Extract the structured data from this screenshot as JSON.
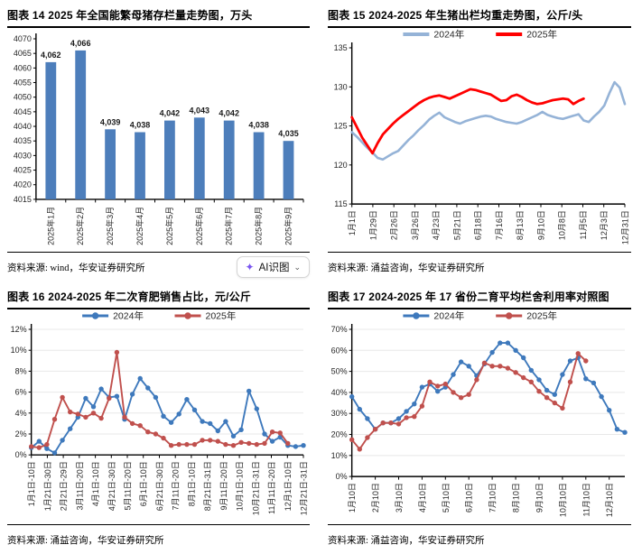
{
  "panels": [
    {
      "source": "资料来源: wind，华安证券研究所",
      "has_ai_button": true
    },
    {
      "source": "资料来源: 涌益咨询，华安证券研究所",
      "has_ai_button": false
    },
    {
      "source": "资料来源: 涌益咨询，华安证券研究所",
      "has_ai_button": false
    },
    {
      "source": "资料来源: 涌益咨询，华安证券研究所",
      "has_ai_button": false
    }
  ],
  "ai_button": {
    "label": "AI识图",
    "icon": "sparkle-scan-icon",
    "chevron": "⌄",
    "accent": "#7b57f0"
  },
  "chart_data": [
    {
      "type": "bar",
      "title": "图表 14 2025 年全国能繁母猪存栏量走势图，万头",
      "categories": [
        "2025年1月",
        "2025年2月",
        "2025年3月",
        "2025年4月",
        "2025年5月",
        "2025年6月",
        "2025年7月",
        "2025年8月",
        "2025年9月"
      ],
      "values": [
        4062,
        4066,
        4039,
        4038,
        4042,
        4043,
        4042,
        4038,
        4035
      ],
      "value_labels": [
        "4,062",
        "4,066",
        "4,039",
        "4,038",
        "4,042",
        "4,043",
        "4,042",
        "4,038",
        "4,035"
      ],
      "bar_color": "#4D7EBB",
      "ylim": [
        4015,
        4070
      ],
      "ytick_step": 5,
      "grid": false,
      "percent": false,
      "xlabel": "",
      "ylabel": "万头"
    },
    {
      "type": "line",
      "title": "图表 15 2024-2025 年生猪出栏均重走势图，公斤/头",
      "xlabels": [
        "1月1日",
        "1月29日",
        "2月26日",
        "3月26日",
        "4月23日",
        "5月21日",
        "6月18日",
        "7月16日",
        "8月13日",
        "9月10日",
        "10月8日",
        "11月5日",
        "12月3日",
        "12月31日"
      ],
      "x_count": 54,
      "ylim": [
        115,
        135
      ],
      "ytick_step": 5,
      "grid": false,
      "percent": false,
      "legend_position": "top",
      "series": [
        {
          "name": "2024年",
          "color": "#95B3D7",
          "width": 2.6,
          "markers": false,
          "values": [
            124.2,
            123.6,
            122.9,
            122.2,
            121.6,
            120.9,
            120.7,
            121.1,
            121.5,
            121.8,
            122.5,
            123.2,
            123.8,
            124.5,
            125.1,
            125.8,
            126.3,
            126.7,
            126.1,
            125.8,
            125.5,
            125.3,
            125.6,
            125.8,
            126.0,
            126.2,
            126.3,
            126.2,
            125.9,
            125.7,
            125.5,
            125.4,
            125.3,
            125.5,
            125.8,
            126.1,
            126.4,
            126.8,
            126.4,
            126.2,
            126.0,
            125.9,
            126.1,
            126.3,
            126.5,
            125.7,
            125.5,
            126.2,
            126.8,
            127.6,
            129.2,
            130.6,
            129.9,
            127.8
          ]
        },
        {
          "name": "2025年",
          "color": "#FF0000",
          "width": 2.8,
          "markers": false,
          "values": [
            126.1,
            124.8,
            123.5,
            122.5,
            121.5,
            122.8,
            123.9,
            124.6,
            125.3,
            125.9,
            126.4,
            126.9,
            127.4,
            127.9,
            128.3,
            128.6,
            128.8,
            128.9,
            128.7,
            128.5,
            128.8,
            129.1,
            129.4,
            129.7,
            129.6,
            129.4,
            129.2,
            129.0,
            128.6,
            128.2,
            128.3,
            128.8,
            129.0,
            128.7,
            128.3,
            128.0,
            127.8,
            127.9,
            128.1,
            128.3,
            128.4,
            128.5,
            128.4,
            127.8,
            128.2,
            128.5
          ]
        }
      ]
    },
    {
      "type": "line",
      "title": "图表 16 2024-2025 年二次育肥销售占比，元/公斤",
      "xlabels": [
        "1月1日-10日",
        "1月21日-30日",
        "2月21日-29日",
        "3月11日-20日",
        "4月1日-10日",
        "4月21日-30日",
        "5月11日-20日",
        "6月1日-10日",
        "6月21日-30日",
        "7月11日-20日",
        "8月1日-10日",
        "8月21日-31日",
        "9月11日-20日",
        "10月1日-10日",
        "10月21日-31日",
        "11月11日-20日",
        "12月1日-10日",
        "12月21日-31日"
      ],
      "x_count": 36,
      "ylim": [
        0,
        12
      ],
      "ytick_step": 2,
      "grid": true,
      "percent": true,
      "legend_position": "top",
      "series": [
        {
          "name": "2024年",
          "color": "#3E79BC",
          "width": 1.9,
          "markers": true,
          "values": [
            0.7,
            1.3,
            0.6,
            0.2,
            1.4,
            2.5,
            3.6,
            5.4,
            4.6,
            6.3,
            5.5,
            5.6,
            3.4,
            5.8,
            7.3,
            6.4,
            5.5,
            3.7,
            3.1,
            3.9,
            5.3,
            4.3,
            3.2,
            3.0,
            2.3,
            3.2,
            1.8,
            2.4,
            6.1,
            4.4,
            2.0,
            1.3,
            1.7,
            0.9,
            0.8,
            0.9
          ]
        },
        {
          "name": "2025年",
          "color": "#C0504D",
          "width": 1.9,
          "markers": true,
          "values": [
            0.8,
            0.7,
            1.0,
            3.4,
            5.5,
            4.1,
            3.9,
            3.6,
            4.0,
            3.5,
            5.4,
            9.8,
            3.6,
            3.0,
            2.8,
            2.2,
            2.0,
            1.6,
            0.9,
            1.0,
            1.0,
            1.0,
            1.4,
            1.4,
            1.3,
            1.0,
            0.9,
            1.2,
            1.1,
            1.0,
            1.1,
            2.2,
            2.1,
            1.1
          ]
        }
      ]
    },
    {
      "type": "line",
      "title": "图表 17 2024-2025 年 17 省份二育平均栏舍利用率对照图",
      "xlabels": [
        "1月10日",
        "2月10日",
        "3月10日",
        "4月10日",
        "5月10日",
        "6月10日",
        "7月10日",
        "8月10日",
        "9月10日",
        "10月10日",
        "11月10日",
        "12月10日"
      ],
      "x_count": 36,
      "label_step": 3,
      "ylim": [
        0,
        70
      ],
      "ytick_step": 10,
      "grid": true,
      "percent": true,
      "legend_position": "top",
      "series": [
        {
          "name": "2024年",
          "color": "#3E79BC",
          "width": 1.9,
          "markers": true,
          "values": [
            38,
            32,
            27.5,
            22.5,
            25.5,
            25.5,
            27.5,
            31,
            34.5,
            42.5,
            44,
            40.5,
            42.5,
            48.5,
            54.5,
            52.5,
            48,
            53.5,
            59,
            63.5,
            63.5,
            60,
            56.5,
            50.5,
            46,
            41,
            39,
            48.5,
            55,
            56.5,
            46.5,
            44.5,
            38,
            31.5,
            22.5,
            21
          ]
        },
        {
          "name": "2025年",
          "color": "#C0504D",
          "width": 1.9,
          "markers": true,
          "values": [
            17.5,
            13,
            18.5,
            22.5,
            25.5,
            25.5,
            25,
            28,
            28.5,
            33.5,
            45,
            43,
            44,
            40,
            37.5,
            39,
            46,
            54,
            52.5,
            52.5,
            51.5,
            49.5,
            47,
            45,
            40.5,
            37.5,
            35,
            32.5,
            45,
            58.5,
            55
          ]
        }
      ]
    }
  ]
}
